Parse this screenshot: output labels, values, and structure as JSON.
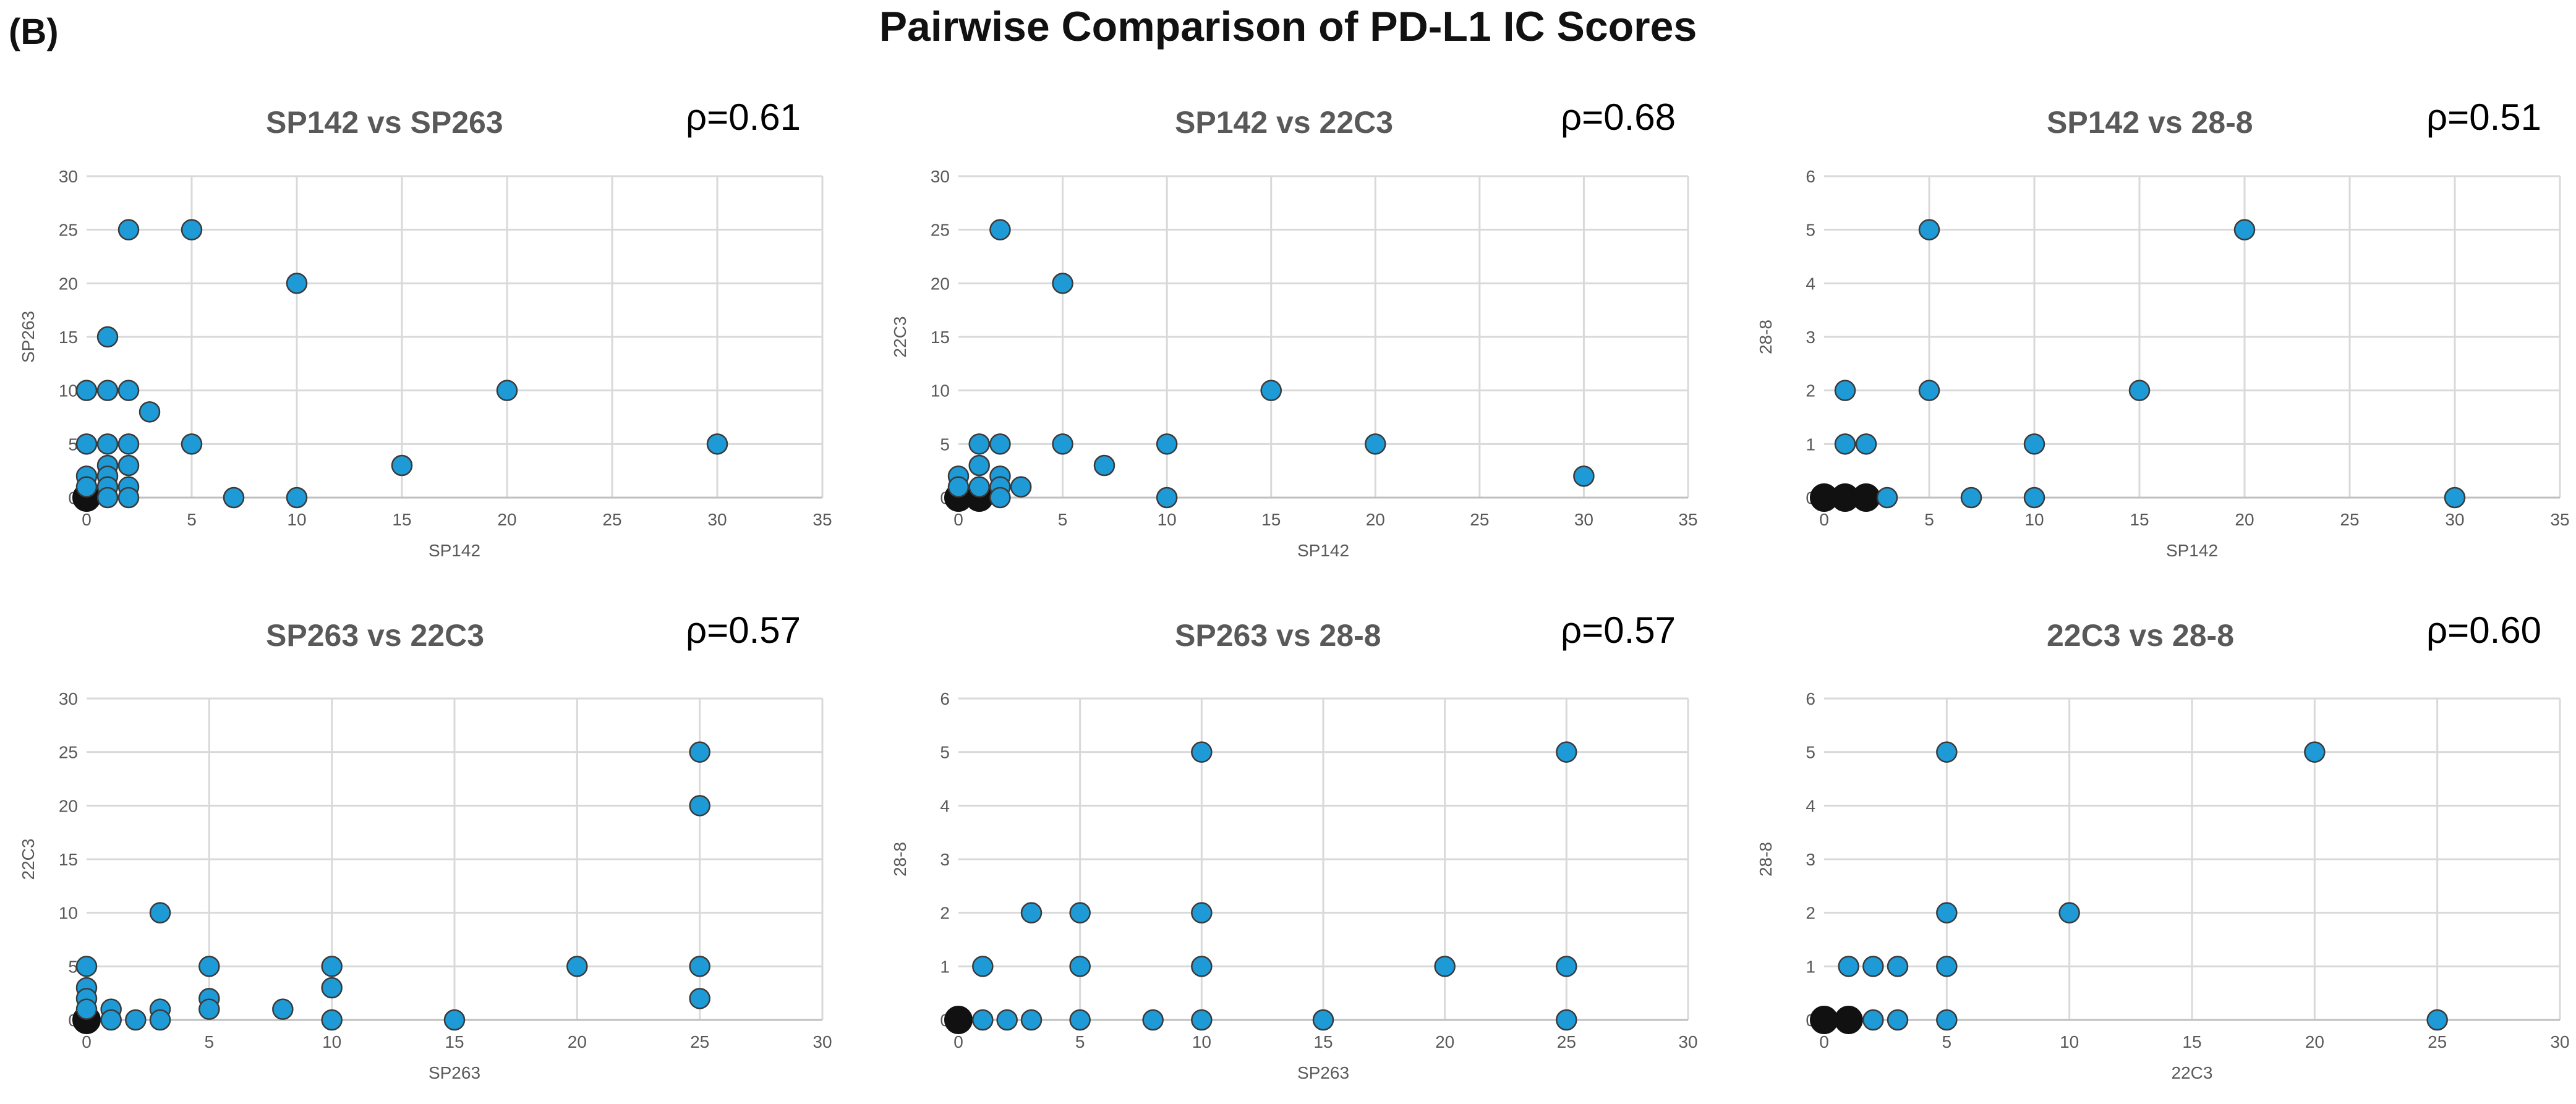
{
  "figure": {
    "panel_label": "(B)",
    "title": "Pairwise Comparison of PD-L1 IC Scores"
  },
  "colors": {
    "marker": "#1E9BD7",
    "marker_edge": "#3a3a3a",
    "overlap": "#111111"
  },
  "chart_data": [
    {
      "type": "scatter",
      "title": "SP142 vs SP263",
      "rho": "ρ=0.61",
      "xlabel": "SP142",
      "ylabel": "SP263",
      "xlim": [
        0,
        35
      ],
      "ylim": [
        0,
        30
      ],
      "xticks": [
        0,
        5,
        10,
        15,
        20,
        25,
        30,
        35
      ],
      "yticks": [
        0,
        5,
        10,
        15,
        20,
        25,
        30
      ],
      "overlap_points": [
        [
          0,
          0
        ]
      ],
      "points": [
        [
          0,
          10
        ],
        [
          0,
          5
        ],
        [
          0,
          2
        ],
        [
          0,
          1
        ],
        [
          1,
          15
        ],
        [
          1,
          10
        ],
        [
          1,
          5
        ],
        [
          1,
          3
        ],
        [
          1,
          2
        ],
        [
          1,
          1
        ],
        [
          1,
          0
        ],
        [
          2,
          25
        ],
        [
          2,
          10
        ],
        [
          2,
          5
        ],
        [
          2,
          3
        ],
        [
          2,
          1
        ],
        [
          2,
          0
        ],
        [
          3,
          8
        ],
        [
          5,
          25
        ],
        [
          5,
          5
        ],
        [
          7,
          0
        ],
        [
          10,
          20
        ],
        [
          10,
          0
        ],
        [
          15,
          3
        ],
        [
          20,
          10
        ],
        [
          30,
          5
        ]
      ]
    },
    {
      "type": "scatter",
      "title": "SP142 vs 22C3",
      "rho": "ρ=0.68",
      "xlabel": "SP142",
      "ylabel": "22C3",
      "xlim": [
        0,
        35
      ],
      "ylim": [
        0,
        30
      ],
      "xticks": [
        0,
        5,
        10,
        15,
        20,
        25,
        30,
        35
      ],
      "yticks": [
        0,
        5,
        10,
        15,
        20,
        25,
        30
      ],
      "overlap_points": [
        [
          0,
          0
        ],
        [
          1,
          0
        ]
      ],
      "points": [
        [
          0,
          2
        ],
        [
          0,
          1
        ],
        [
          1,
          5
        ],
        [
          1,
          3
        ],
        [
          1,
          1
        ],
        [
          2,
          25
        ],
        [
          2,
          5
        ],
        [
          2,
          2
        ],
        [
          2,
          1
        ],
        [
          2,
          0
        ],
        [
          3,
          1
        ],
        [
          5,
          20
        ],
        [
          5,
          5
        ],
        [
          7,
          3
        ],
        [
          10,
          5
        ],
        [
          10,
          0
        ],
        [
          15,
          10
        ],
        [
          20,
          5
        ],
        [
          30,
          2
        ]
      ]
    },
    {
      "type": "scatter",
      "title": "SP142 vs 28-8",
      "rho": "ρ=0.51",
      "xlabel": "SP142",
      "ylabel": "28-8",
      "xlim": [
        0,
        35
      ],
      "ylim": [
        0,
        6
      ],
      "xticks": [
        0,
        5,
        10,
        15,
        20,
        25,
        30,
        35
      ],
      "yticks": [
        0,
        1,
        2,
        3,
        4,
        5,
        6
      ],
      "overlap_points": [
        [
          0,
          0
        ],
        [
          1,
          0
        ],
        [
          2,
          0
        ]
      ],
      "points": [
        [
          1,
          2
        ],
        [
          1,
          1
        ],
        [
          2,
          1
        ],
        [
          3,
          0
        ],
        [
          5,
          5
        ],
        [
          5,
          2
        ],
        [
          7,
          0
        ],
        [
          10,
          1
        ],
        [
          10,
          0
        ],
        [
          15,
          2
        ],
        [
          20,
          5
        ],
        [
          30,
          0
        ]
      ]
    },
    {
      "type": "scatter",
      "title": "SP263 vs 22C3",
      "rho": "ρ=0.57",
      "xlabel": "SP263",
      "ylabel": "22C3",
      "xlim": [
        0,
        30
      ],
      "ylim": [
        0,
        30
      ],
      "xticks": [
        0,
        5,
        10,
        15,
        20,
        25,
        30
      ],
      "yticks": [
        0,
        5,
        10,
        15,
        20,
        25,
        30
      ],
      "overlap_points": [
        [
          0,
          0
        ]
      ],
      "points": [
        [
          0,
          5
        ],
        [
          0,
          3
        ],
        [
          0,
          2
        ],
        [
          0,
          1
        ],
        [
          1,
          1
        ],
        [
          1,
          0
        ],
        [
          2,
          0
        ],
        [
          3,
          10
        ],
        [
          3,
          1
        ],
        [
          3,
          0
        ],
        [
          5,
          5
        ],
        [
          5,
          2
        ],
        [
          5,
          1
        ],
        [
          8,
          1
        ],
        [
          10,
          5
        ],
        [
          10,
          3
        ],
        [
          10,
          0
        ],
        [
          15,
          0
        ],
        [
          20,
          5
        ],
        [
          25,
          25
        ],
        [
          25,
          20
        ],
        [
          25,
          5
        ],
        [
          25,
          2
        ]
      ]
    },
    {
      "type": "scatter",
      "title": "SP263 vs 28-8",
      "rho": "ρ=0.57",
      "xlabel": "SP263",
      "ylabel": "28-8",
      "xlim": [
        0,
        30
      ],
      "ylim": [
        0,
        6
      ],
      "xticks": [
        0,
        5,
        10,
        15,
        20,
        25,
        30
      ],
      "yticks": [
        0,
        1,
        2,
        3,
        4,
        5,
        6
      ],
      "overlap_points": [
        [
          0,
          0
        ]
      ],
      "points": [
        [
          1,
          1
        ],
        [
          1,
          0
        ],
        [
          2,
          0
        ],
        [
          3,
          2
        ],
        [
          3,
          0
        ],
        [
          5,
          2
        ],
        [
          5,
          1
        ],
        [
          5,
          0
        ],
        [
          8,
          0
        ],
        [
          10,
          5
        ],
        [
          10,
          2
        ],
        [
          10,
          1
        ],
        [
          10,
          0
        ],
        [
          15,
          0
        ],
        [
          20,
          1
        ],
        [
          25,
          5
        ],
        [
          25,
          1
        ],
        [
          25,
          0
        ]
      ]
    },
    {
      "type": "scatter",
      "title": "22C3 vs 28-8",
      "rho": "ρ=0.60",
      "xlabel": "22C3",
      "ylabel": "28-8",
      "xlim": [
        0,
        30
      ],
      "ylim": [
        0,
        6
      ],
      "xticks": [
        0,
        5,
        10,
        15,
        20,
        25,
        30
      ],
      "yticks": [
        0,
        1,
        2,
        3,
        4,
        5,
        6
      ],
      "overlap_points": [
        [
          0,
          0
        ],
        [
          1,
          0
        ]
      ],
      "points": [
        [
          1,
          1
        ],
        [
          2,
          1
        ],
        [
          2,
          0
        ],
        [
          3,
          1
        ],
        [
          3,
          0
        ],
        [
          5,
          5
        ],
        [
          5,
          2
        ],
        [
          5,
          1
        ],
        [
          5,
          0
        ],
        [
          10,
          2
        ],
        [
          20,
          5
        ],
        [
          25,
          0
        ]
      ]
    }
  ]
}
